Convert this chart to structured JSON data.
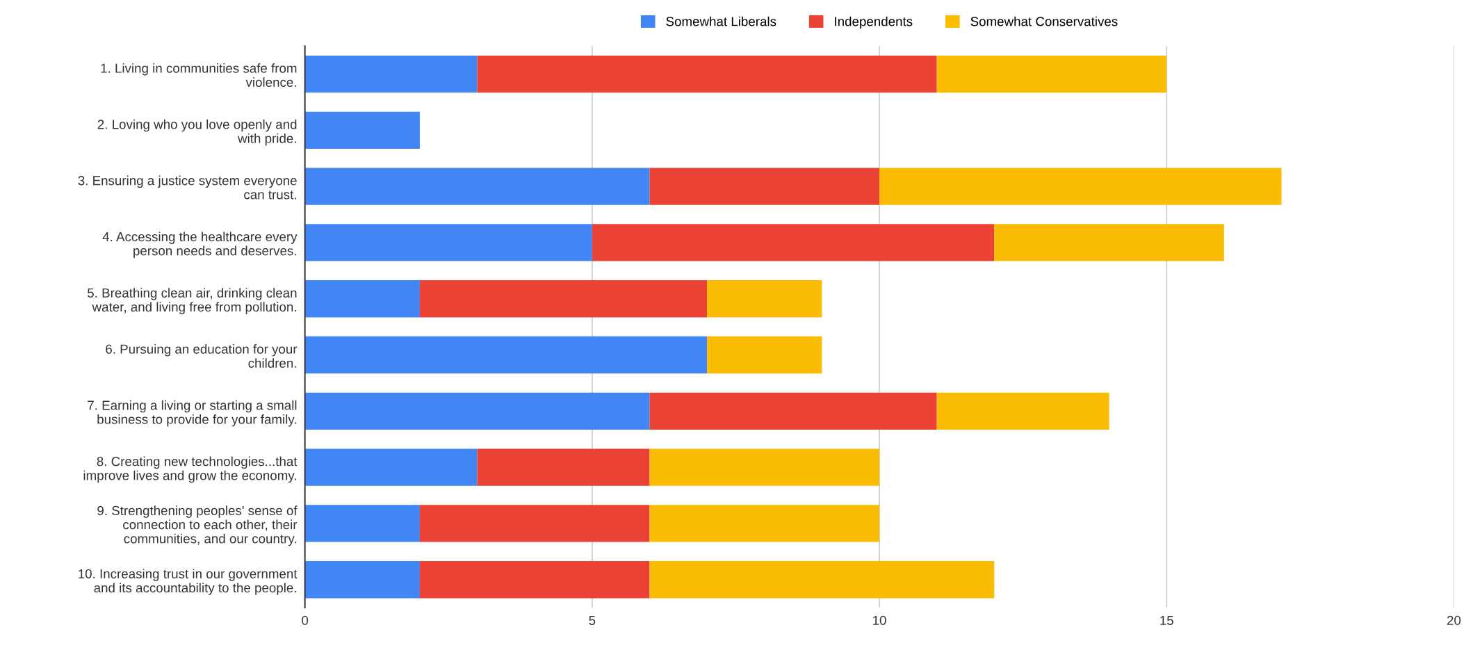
{
  "chart_data": {
    "type": "bar",
    "orientation": "horizontal",
    "stacked": true,
    "categories": [
      "1. Living in communities safe from\nviolence.",
      "2. Loving who you love openly and\nwith pride.",
      "3. Ensuring a justice system everyone\ncan trust.",
      "4. Accessing the healthcare every\nperson needs and deserves.",
      "5. Breathing clean air, drinking clean\nwater, and living free from pollution.",
      "6. Pursuing an education for your\nchildren.",
      "7. Earning a living or starting a small\nbusiness to provide for your family.",
      "8. Creating new technologies...that\nimprove lives and grow the economy.",
      "9. Strengthening peoples' sense of\nconnection to each other, their\ncommunities, and our country.",
      "10. Increasing trust in our government\nand its accountability to the people."
    ],
    "series": [
      {
        "name": "Somewhat Liberals",
        "color": "#4285f4",
        "values": [
          3,
          2,
          6,
          5,
          2,
          7,
          6,
          3,
          2,
          2
        ]
      },
      {
        "name": "Independents",
        "color": "#ea4335",
        "values": [
          8,
          0,
          4,
          7,
          5,
          0,
          5,
          3,
          4,
          4
        ]
      },
      {
        "name": "Somewhat Conservatives",
        "color": "#fbbc04",
        "values": [
          4,
          0,
          7,
          4,
          2,
          2,
          3,
          4,
          4,
          6
        ]
      }
    ],
    "xlim": [
      0,
      20
    ],
    "xticks": [
      0,
      5,
      10,
      15,
      20
    ],
    "grid": "x",
    "legend": "top"
  }
}
